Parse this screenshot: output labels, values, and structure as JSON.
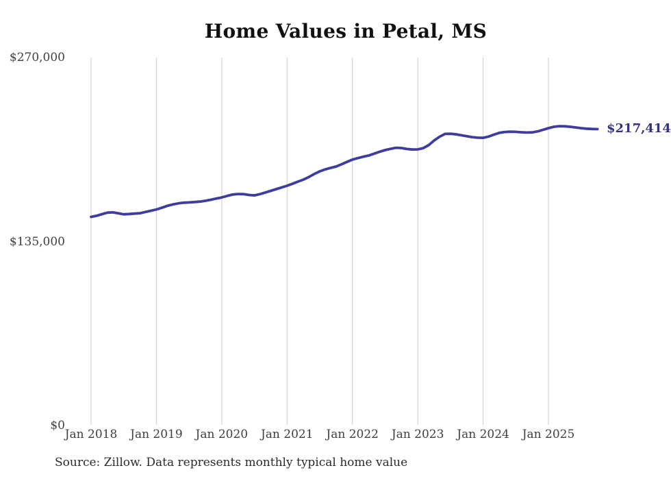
{
  "page": {
    "background": "#ffffff"
  },
  "footer": {
    "source_note": "Source: Zillow. Data represents monthly typical home value"
  },
  "chart_data": {
    "type": "line",
    "title": "Home Values in Petal, MS",
    "xlabel": "",
    "ylabel": "",
    "ylim": [
      0,
      270000
    ],
    "grid": "vertical-only",
    "legend": "none",
    "end_label": "$217,414",
    "end_value": 217414,
    "x_tick_labels": [
      "Jan 2018",
      "Jan 2019",
      "Jan 2020",
      "Jan 2021",
      "Jan 2022",
      "Jan 2023",
      "Jan 2024",
      "Jan 2025"
    ],
    "y_ticks": [
      {
        "label": "$0",
        "value": 0
      },
      {
        "label": "$135,000",
        "value": 135000
      },
      {
        "label": "$270,000",
        "value": 270000
      }
    ],
    "series": [
      {
        "name": "Typical home value",
        "frequency": "monthly",
        "start_month": "Jan 2018",
        "end_month": "Oct 2025",
        "values": [
          152900,
          153700,
          154900,
          156000,
          156200,
          155500,
          154800,
          155000,
          155300,
          155600,
          156500,
          157400,
          158300,
          159600,
          161000,
          162000,
          162800,
          163300,
          163500,
          163800,
          164100,
          164700,
          165500,
          166400,
          167200,
          168300,
          169300,
          169700,
          169600,
          169000,
          168700,
          169600,
          170800,
          172000,
          173300,
          174500,
          175800,
          177200,
          178800,
          180300,
          182200,
          184400,
          186400,
          187800,
          188900,
          189900,
          191500,
          193300,
          195000,
          196100,
          197100,
          198000,
          199400,
          200800,
          202000,
          202900,
          203700,
          203500,
          202800,
          202400,
          202500,
          203400,
          205600,
          209000,
          211800,
          213900,
          214000,
          213600,
          212900,
          212200,
          211500,
          211100,
          211000,
          211900,
          213400,
          214700,
          215300,
          215500,
          215400,
          215100,
          214900,
          215000,
          215700,
          216900,
          218100,
          219100,
          219600,
          219500,
          219100,
          218600,
          218100,
          217700,
          217500,
          217414
        ]
      }
    ],
    "colors": {
      "line": "#3e3c9e",
      "end_label": "#32327e",
      "gridline": "#cccccc",
      "axis_text": "#3f3f3f",
      "title_text": "#111111",
      "source_text": "#2b2b2b"
    }
  }
}
